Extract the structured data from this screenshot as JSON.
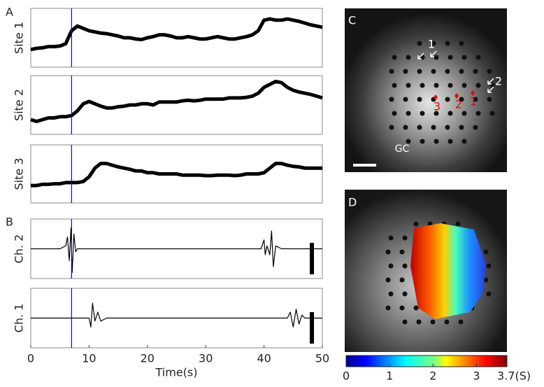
{
  "chart_data": [
    {
      "type": "line",
      "ylabel": "Site 1",
      "xlim": [
        0,
        50
      ],
      "ylim": [
        0,
        1
      ],
      "color": "#000000",
      "vline": {
        "x": 7,
        "color": "#0000ff"
      },
      "x": [
        0,
        1,
        2,
        3,
        4,
        5,
        6,
        7,
        8,
        9,
        10,
        11,
        12,
        13,
        14,
        15,
        16,
        17,
        18,
        19,
        20,
        21,
        22,
        23,
        24,
        25,
        26,
        27,
        28,
        29,
        30,
        31,
        32,
        33,
        34,
        35,
        36,
        37,
        38,
        39,
        40,
        41,
        42,
        43,
        44,
        45,
        46,
        47,
        48,
        49,
        50
      ],
      "values": [
        0.3,
        0.32,
        0.33,
        0.35,
        0.35,
        0.36,
        0.4,
        0.62,
        0.7,
        0.66,
        0.62,
        0.6,
        0.58,
        0.57,
        0.55,
        0.53,
        0.5,
        0.5,
        0.48,
        0.47,
        0.5,
        0.52,
        0.55,
        0.55,
        0.53,
        0.5,
        0.5,
        0.52,
        0.5,
        0.48,
        0.48,
        0.5,
        0.52,
        0.5,
        0.48,
        0.48,
        0.5,
        0.52,
        0.55,
        0.62,
        0.8,
        0.82,
        0.8,
        0.8,
        0.82,
        0.8,
        0.78,
        0.75,
        0.72,
        0.7,
        0.68
      ]
    },
    {
      "type": "line",
      "ylabel": "Site 2",
      "xlim": [
        0,
        50
      ],
      "ylim": [
        0,
        1
      ],
      "color": "#000000",
      "vline": {
        "x": 7,
        "color": "#0000ff"
      },
      "x": [
        0,
        1,
        2,
        3,
        4,
        5,
        6,
        7,
        8,
        9,
        10,
        11,
        12,
        13,
        14,
        15,
        16,
        17,
        18,
        19,
        20,
        21,
        22,
        23,
        24,
        25,
        26,
        27,
        28,
        29,
        30,
        31,
        32,
        33,
        34,
        35,
        36,
        37,
        38,
        39,
        40,
        41,
        42,
        43,
        44,
        45,
        46,
        47,
        48,
        49,
        50
      ],
      "values": [
        0.25,
        0.22,
        0.25,
        0.28,
        0.28,
        0.3,
        0.3,
        0.32,
        0.4,
        0.52,
        0.56,
        0.52,
        0.48,
        0.45,
        0.45,
        0.47,
        0.48,
        0.5,
        0.5,
        0.52,
        0.52,
        0.5,
        0.55,
        0.55,
        0.55,
        0.55,
        0.57,
        0.58,
        0.57,
        0.58,
        0.6,
        0.6,
        0.6,
        0.6,
        0.62,
        0.62,
        0.62,
        0.63,
        0.65,
        0.7,
        0.8,
        0.85,
        0.9,
        0.88,
        0.8,
        0.75,
        0.72,
        0.7,
        0.68,
        0.65,
        0.62
      ]
    },
    {
      "type": "line",
      "ylabel": "Site 3",
      "xlim": [
        0,
        50
      ],
      "ylim": [
        0,
        1
      ],
      "color": "#000000",
      "vline": {
        "x": 7,
        "color": "#0000ff"
      },
      "x": [
        0,
        1,
        2,
        3,
        4,
        5,
        6,
        7,
        8,
        9,
        10,
        11,
        12,
        13,
        14,
        15,
        16,
        17,
        18,
        19,
        20,
        21,
        22,
        23,
        24,
        25,
        26,
        27,
        28,
        29,
        30,
        31,
        32,
        33,
        34,
        35,
        36,
        37,
        38,
        39,
        40,
        41,
        42,
        43,
        44,
        45,
        46,
        47,
        48,
        49,
        50
      ],
      "values": [
        0.3,
        0.3,
        0.32,
        0.32,
        0.33,
        0.33,
        0.35,
        0.35,
        0.35,
        0.37,
        0.45,
        0.6,
        0.68,
        0.68,
        0.65,
        0.62,
        0.6,
        0.58,
        0.55,
        0.55,
        0.52,
        0.52,
        0.5,
        0.5,
        0.5,
        0.5,
        0.48,
        0.48,
        0.48,
        0.48,
        0.47,
        0.47,
        0.48,
        0.48,
        0.48,
        0.47,
        0.48,
        0.5,
        0.5,
        0.5,
        0.52,
        0.6,
        0.68,
        0.68,
        0.65,
        0.63,
        0.62,
        0.6,
        0.6,
        0.6,
        0.6
      ]
    },
    {
      "type": "line",
      "ylabel": "Ch. 2",
      "xlim": [
        0,
        50
      ],
      "ylim": [
        0,
        1
      ],
      "color": "#000000",
      "vline": {
        "x": 7,
        "color": "#0000ff"
      },
      "x": [
        0,
        5,
        6,
        6.3,
        6.6,
        6.9,
        7.1,
        7.4,
        7.7,
        8,
        9,
        39.5,
        40,
        40.2,
        40.5,
        41,
        41.3,
        41.6,
        42,
        43,
        50
      ],
      "values": [
        0.5,
        0.5,
        0.55,
        0.7,
        0.3,
        0.85,
        0.1,
        0.75,
        0.45,
        0.5,
        0.5,
        0.5,
        0.65,
        0.4,
        0.55,
        0.4,
        0.8,
        0.2,
        0.55,
        0.5,
        0.5
      ]
    },
    {
      "type": "line",
      "ylabel": "Ch. 1",
      "xlabel": "Time(s)",
      "xlim": [
        0,
        50
      ],
      "ylim": [
        0,
        1
      ],
      "color": "#000000",
      "vline": {
        "x": 7,
        "color": "#0000ff"
      },
      "xticks": [
        0,
        10,
        20,
        30,
        40,
        50
      ],
      "x": [
        0,
        10,
        10.3,
        10.6,
        11,
        11.5,
        12,
        13,
        44,
        44.5,
        45,
        45.5,
        46,
        46.5,
        47,
        50
      ],
      "values": [
        0.5,
        0.5,
        0.35,
        0.75,
        0.45,
        0.6,
        0.45,
        0.5,
        0.5,
        0.6,
        0.35,
        0.65,
        0.4,
        0.55,
        0.5,
        0.5
      ]
    }
  ],
  "panel_labels": [
    "A",
    "B",
    "C",
    "D"
  ],
  "panel_c_labels": [
    "1",
    "2",
    "3",
    "2",
    "1",
    "GC"
  ],
  "colorbar": {
    "lim": [
      0,
      3.7
    ],
    "ticks": [
      0,
      1,
      2,
      3,
      {
        "value": 3.7,
        "label": "3.7(S)"
      }
    ]
  }
}
